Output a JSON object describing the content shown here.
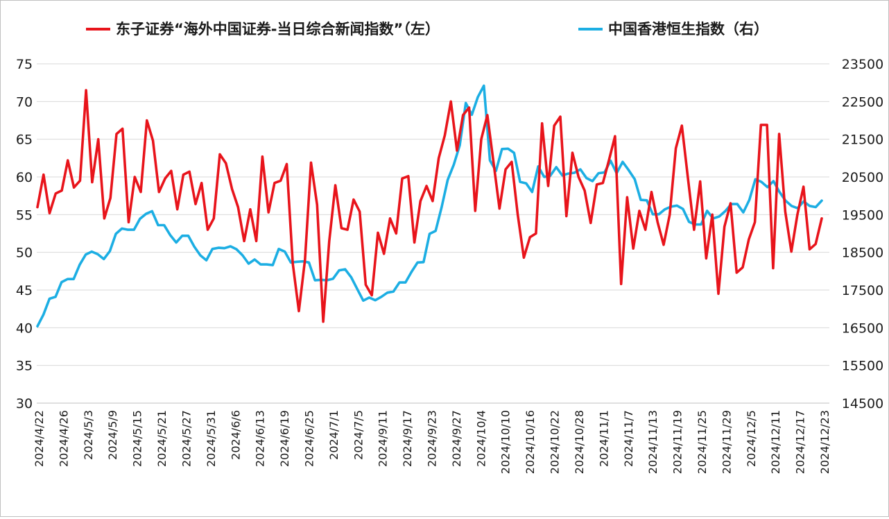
{
  "chart_data": {
    "type": "line",
    "legend": {
      "placement": "top"
    },
    "grid": true,
    "colors": {
      "red_series": "#e8141b",
      "blue_series": "#1caee3",
      "grid": "#d9d9d9"
    },
    "x_tick_labels": [
      "2024/4/22",
      "2024/4/26",
      "2024/5/3",
      "2024/5/9",
      "2024/5/15",
      "2024/5/21",
      "2024/5/27",
      "2024/5/31",
      "2024/6/6",
      "2024/6/13",
      "2024/6/19",
      "2024/6/25",
      "2024/7/1",
      "2024/7/5",
      "2024/9/11",
      "2024/9/17",
      "2024/9/23",
      "2024/9/27",
      "2024/10/4",
      "2024/10/10",
      "2024/10/16",
      "2024/10/22",
      "2024/10/28",
      "2024/11/1",
      "2024/11/7",
      "2024/11/13",
      "2024/11/19",
      "2024/11/25",
      "2024/11/29",
      "2024/12/5",
      "2024/12/11",
      "2024/12/17",
      "2024/12/23"
    ],
    "y_left": {
      "min": 30,
      "max": 75,
      "ticks": [
        "30",
        "35",
        "40",
        "45",
        "50",
        "55",
        "60",
        "65",
        "70",
        "75"
      ]
    },
    "y_right": {
      "min": 14500,
      "max": 23500,
      "ticks": [
        "14500",
        "15500",
        "16500",
        "17500",
        "18500",
        "19500",
        "20500",
        "21500",
        "22500",
        "23500"
      ]
    },
    "series": [
      {
        "name": "东子证券“海外中国证券-当日综合新闻指数”（左）",
        "axis": "left",
        "values": [
          56,
          60.3,
          55.2,
          57.8,
          58.2,
          62.2,
          58.6,
          59.5,
          71.5,
          59.3,
          65,
          54.5,
          57.2,
          65.7,
          66.4,
          54,
          60,
          58,
          67.5,
          64.8,
          58,
          59.8,
          60.8,
          55.7,
          60.3,
          60.7,
          56.4,
          59.2,
          53,
          54.5,
          63,
          61.8,
          58.4,
          56,
          51.5,
          55.7,
          51.5,
          62.7,
          55.3,
          59.2,
          59.5,
          61.7,
          48.5,
          42.2,
          49,
          61.9,
          56.3,
          40.8,
          51.5,
          58.9,
          53.2,
          53,
          57,
          55.4,
          45.7,
          44.3,
          52.6,
          49.8,
          54.5,
          52.5,
          59.8,
          60.1,
          51.3,
          56.8,
          58.8,
          56.8,
          62.5,
          65.5,
          70,
          63.5,
          68.2,
          69.2,
          55.5,
          65,
          68.2,
          62,
          55.8,
          61,
          62,
          55,
          49.3,
          52,
          52.5,
          67.1,
          58.8,
          66.8,
          68,
          54.8,
          63.2,
          60,
          58.2,
          53.9,
          59,
          59.2,
          62.2,
          65.4,
          45.8,
          57.3,
          50.5,
          55.5,
          53,
          58,
          54,
          51,
          55,
          63.8,
          66.8,
          59.8,
          53,
          59.4,
          49.2,
          55,
          44.5,
          53.4,
          56.5,
          47.3,
          48,
          51.7,
          54,
          66.9,
          66.9,
          47.9,
          65.7,
          55.4,
          50.1,
          55,
          58.7,
          50.4,
          51.1,
          54.5
        ]
      },
      {
        "name": "中国香港恒生指数（右）",
        "axis": "right",
        "values": [
          16540,
          16850,
          17270,
          17320,
          17710,
          17790,
          17790,
          18170,
          18440,
          18520,
          18450,
          18320,
          18530,
          18990,
          19130,
          19100,
          19100,
          19390,
          19520,
          19590,
          19220,
          19220,
          18960,
          18760,
          18940,
          18940,
          18650,
          18420,
          18290,
          18590,
          18620,
          18610,
          18660,
          18580,
          18420,
          18200,
          18310,
          18180,
          18180,
          18160,
          18590,
          18520,
          18230,
          18250,
          18260,
          18230,
          17760,
          17770,
          17760,
          17800,
          18020,
          18050,
          17840,
          17530,
          17220,
          17300,
          17230,
          17320,
          17430,
          17460,
          17700,
          17700,
          17980,
          18230,
          18240,
          18990,
          19070,
          19700,
          20420,
          20820,
          21340,
          22460,
          22150,
          22620,
          22920,
          20940,
          20660,
          21240,
          21250,
          21140,
          20370,
          20330,
          20100,
          20780,
          20500,
          20530,
          20760,
          20540,
          20590,
          20610,
          20700,
          20470,
          20390,
          20600,
          20620,
          20930,
          20600,
          20900,
          20680,
          20440,
          19890,
          19880,
          19510,
          19510,
          19640,
          19710,
          19740,
          19650,
          19310,
          19240,
          19240,
          19600,
          19400,
          19450,
          19590,
          19780,
          19780,
          19560,
          19890,
          20440,
          20370,
          20230,
          20390,
          20100,
          19870,
          19730,
          19670,
          19850,
          19730,
          19700,
          19870
        ]
      }
    ]
  }
}
